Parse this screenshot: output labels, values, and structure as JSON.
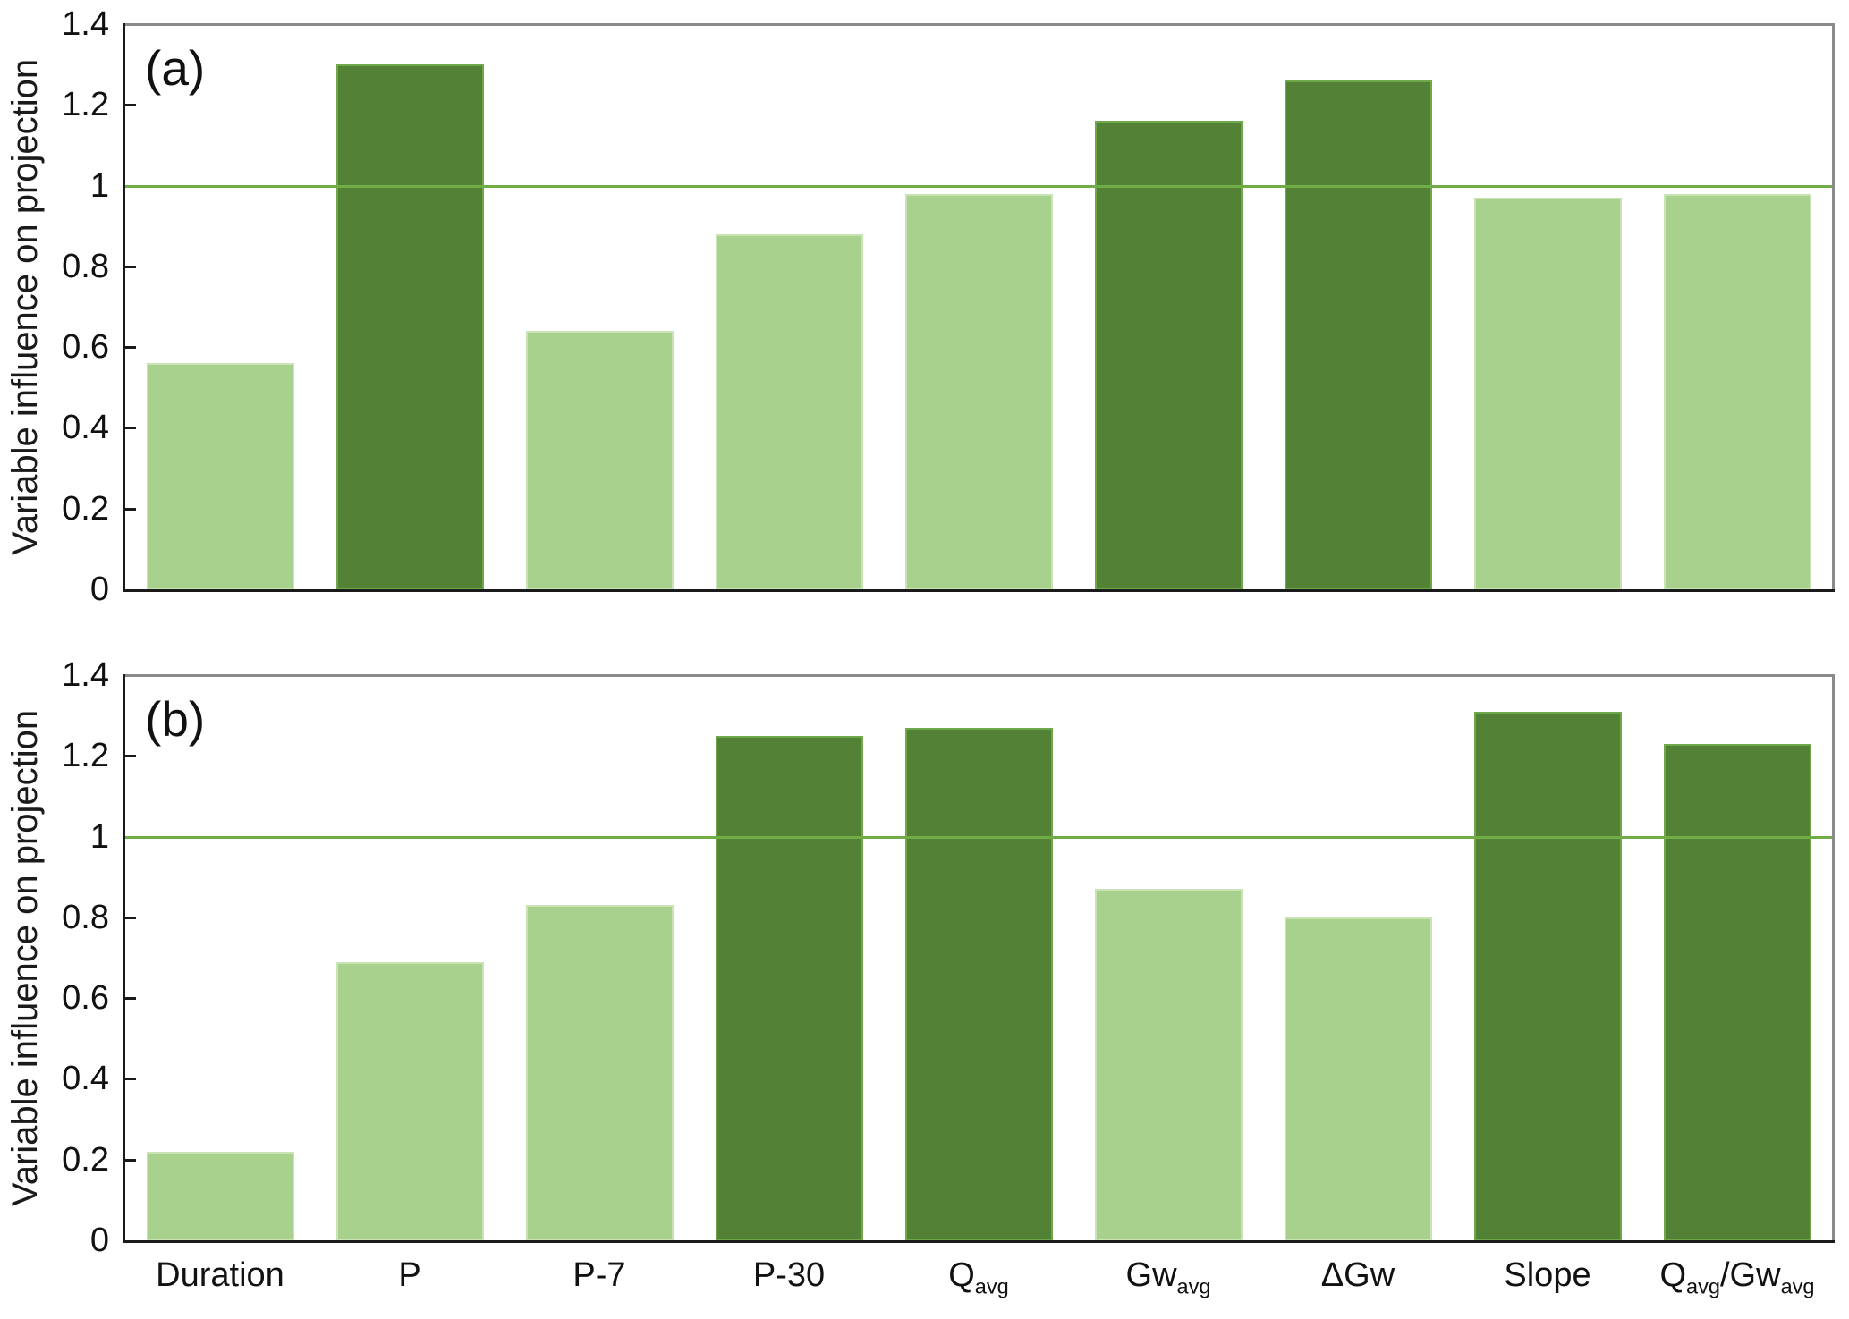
{
  "figure": {
    "background": "#ffffff",
    "colors": {
      "bar_above_line_fill": "#538135",
      "bar_above_line_border": "#6FA84A",
      "bar_below_line_fill": "#A9D18E",
      "bar_below_line_border": "#C9E3B4",
      "reference_line": "#70AD47",
      "frame": "#8a8a8a",
      "axis": "#1a1a1a"
    }
  },
  "chart_data": [
    {
      "type": "bar",
      "panel_label": "(a)",
      "title": "",
      "xlabel": "",
      "ylabel": "Variable influence on projection",
      "categories": [
        "Duration",
        "P",
        "P-7",
        "P-30",
        "Q_{avg}",
        "Gw_{avg}",
        "ΔGw",
        "Slope",
        "Q_{avg}/Gw_{avg}"
      ],
      "values": [
        0.56,
        1.3,
        0.64,
        0.88,
        0.98,
        1.16,
        1.26,
        0.97,
        0.98
      ],
      "ylim": [
        0,
        1.4
      ],
      "ytick_values": [
        0,
        0.2,
        0.4,
        0.6,
        0.8,
        1,
        1.2,
        1.4
      ],
      "ytick_labels": [
        "0",
        "0.2",
        "0.4",
        "0.6",
        "0.8",
        "1",
        "1.2",
        "1.4"
      ],
      "reference_line": 1,
      "show_x_labels": false,
      "grid": false,
      "legend": "none"
    },
    {
      "type": "bar",
      "panel_label": "(b)",
      "title": "",
      "xlabel": "",
      "ylabel": "Variable influence on projection",
      "categories": [
        "Duration",
        "P",
        "P-7",
        "P-30",
        "Q_{avg}",
        "Gw_{avg}",
        "ΔGw",
        "Slope",
        "Q_{avg}/Gw_{avg}"
      ],
      "values": [
        0.22,
        0.69,
        0.83,
        1.25,
        1.27,
        0.87,
        0.8,
        1.31,
        1.23
      ],
      "ylim": [
        0,
        1.4
      ],
      "ytick_values": [
        0,
        0.2,
        0.4,
        0.6,
        0.8,
        1,
        1.2,
        1.4
      ],
      "ytick_labels": [
        "0",
        "0.2",
        "0.4",
        "0.6",
        "0.8",
        "1",
        "1.2",
        "1.4"
      ],
      "reference_line": 1,
      "show_x_labels": true,
      "grid": false,
      "legend": "none"
    }
  ]
}
